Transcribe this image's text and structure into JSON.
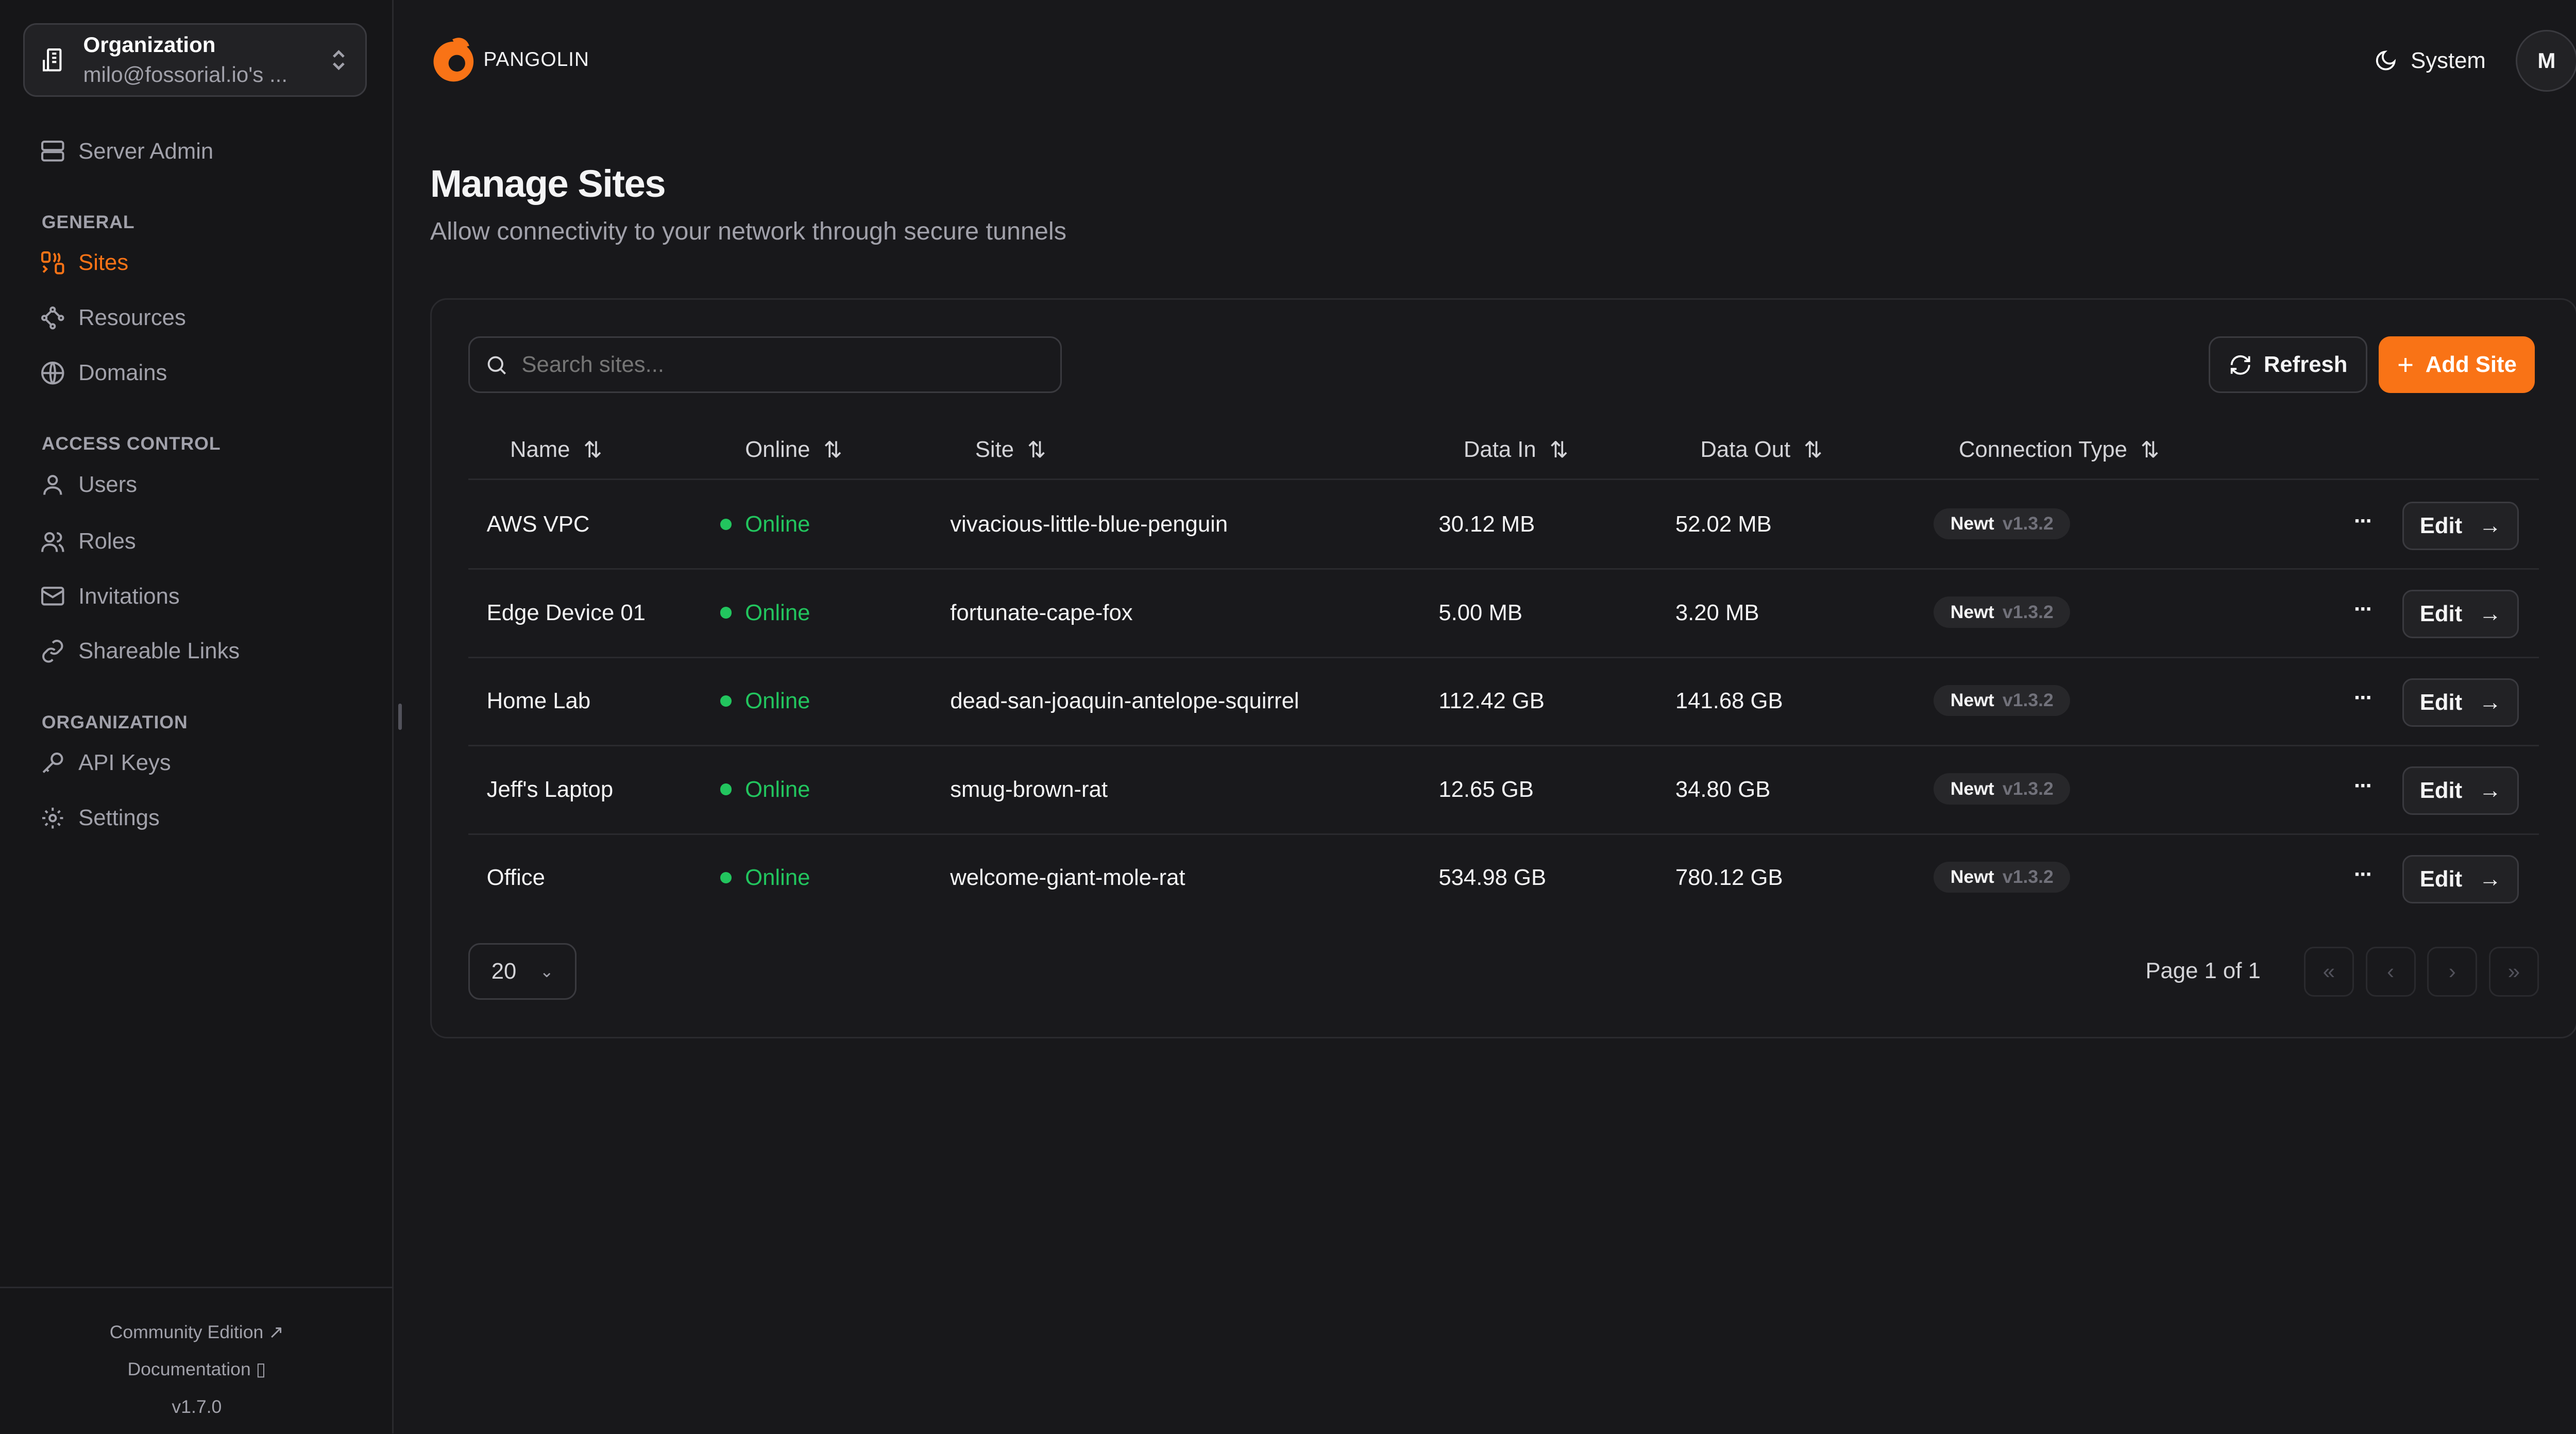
{
  "org": {
    "label": "Organization",
    "name": "milo@fossorial.io's ..."
  },
  "sidebar": {
    "server_admin": "Server Admin",
    "sections": [
      "GENERAL",
      "ACCESS CONTROL",
      "ORGANIZATION"
    ],
    "items": [
      {
        "label": "Sites",
        "active": true
      },
      {
        "label": "Resources"
      },
      {
        "label": "Domains"
      },
      {
        "label": "Users"
      },
      {
        "label": "Roles"
      },
      {
        "label": "Invitations"
      },
      {
        "label": "Shareable Links"
      },
      {
        "label": "API Keys"
      },
      {
        "label": "Settings"
      }
    ],
    "footer": {
      "community": "Community Edition",
      "docs": "Documentation",
      "version": "v1.7.0"
    }
  },
  "header": {
    "brand": "PANGOLIN",
    "theme": "System",
    "avatar": "M"
  },
  "page": {
    "title": "Manage Sites",
    "subtitle": "Allow connectivity to your network through secure tunnels"
  },
  "toolbar": {
    "search_placeholder": "Search sites...",
    "refresh": "Refresh",
    "add": "Add Site"
  },
  "table": {
    "columns": [
      "Name",
      "Online",
      "Site",
      "Data In",
      "Data Out",
      "Connection Type"
    ],
    "rows": [
      {
        "name": "AWS VPC",
        "online": "Online",
        "site": "vivacious-little-blue-penguin",
        "in": "30.12 MB",
        "out": "52.02 MB",
        "type": "Newt",
        "ver": "v1.3.2"
      },
      {
        "name": "Edge Device 01",
        "online": "Online",
        "site": "fortunate-cape-fox",
        "in": "5.00 MB",
        "out": "3.20 MB",
        "type": "Newt",
        "ver": "v1.3.2"
      },
      {
        "name": "Home Lab",
        "online": "Online",
        "site": "dead-san-joaquin-antelope-squirrel",
        "in": "112.42 GB",
        "out": "141.68 GB",
        "type": "Newt",
        "ver": "v1.3.2"
      },
      {
        "name": "Jeff's Laptop",
        "online": "Online",
        "site": "smug-brown-rat",
        "in": "12.65 GB",
        "out": "34.80 GB",
        "type": "Newt",
        "ver": "v1.3.2"
      },
      {
        "name": "Office",
        "online": "Online",
        "site": "welcome-giant-mole-rat",
        "in": "534.98 GB",
        "out": "780.12 GB",
        "type": "Newt",
        "ver": "v1.3.2"
      }
    ],
    "edit": "Edit",
    "more": "···"
  },
  "pagination": {
    "page_size": "20",
    "info": "Page 1 of 1"
  },
  "colors": {
    "accent": "#f97316",
    "online": "#22c55e",
    "background": "#18181b"
  }
}
